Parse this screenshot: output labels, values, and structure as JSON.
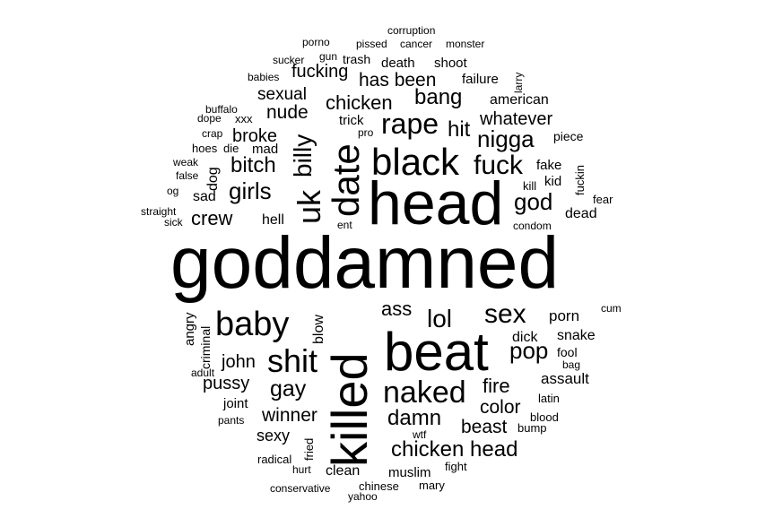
{
  "cloud": {
    "colors": {
      "background": "#ffffff",
      "text": "#000000"
    },
    "words": [
      {
        "text": "goddamned"
      },
      {
        "text": "head"
      },
      {
        "text": "beat"
      },
      {
        "text": "killed"
      },
      {
        "text": "black"
      },
      {
        "text": "date"
      },
      {
        "text": "baby"
      },
      {
        "text": "shit"
      },
      {
        "text": "naked"
      },
      {
        "text": "uk"
      },
      {
        "text": "rape"
      },
      {
        "text": "fuck"
      },
      {
        "text": "nigga"
      },
      {
        "text": "billy"
      },
      {
        "text": "sex"
      },
      {
        "text": "lol"
      },
      {
        "text": "chicken"
      },
      {
        "text": "chicken head"
      },
      {
        "text": "bang"
      },
      {
        "text": "has been"
      },
      {
        "text": "girls"
      },
      {
        "text": "gay"
      },
      {
        "text": "damn"
      },
      {
        "text": "pop"
      },
      {
        "text": "god"
      },
      {
        "text": "hit"
      },
      {
        "text": "bitch"
      },
      {
        "text": "crew"
      },
      {
        "text": "nude"
      },
      {
        "text": "fire"
      },
      {
        "text": "color"
      },
      {
        "text": "beast"
      },
      {
        "text": "ass"
      },
      {
        "text": "winner"
      },
      {
        "text": "pussy"
      },
      {
        "text": "john"
      },
      {
        "text": "whatever"
      },
      {
        "text": "fucking"
      },
      {
        "text": "sexual"
      },
      {
        "text": "broke"
      },
      {
        "text": "porn"
      },
      {
        "text": "snake"
      },
      {
        "text": "dick"
      },
      {
        "text": "assault"
      },
      {
        "text": "sexy"
      },
      {
        "text": "american"
      },
      {
        "text": "blow"
      },
      {
        "text": "angry"
      },
      {
        "text": "dog"
      },
      {
        "text": "sad"
      },
      {
        "text": "hell"
      },
      {
        "text": "mad"
      },
      {
        "text": "death"
      },
      {
        "text": "shoot"
      },
      {
        "text": "failure"
      },
      {
        "text": "trick"
      },
      {
        "text": "clean"
      },
      {
        "text": "muslim"
      },
      {
        "text": "dead"
      },
      {
        "text": "kid"
      },
      {
        "text": "fake"
      },
      {
        "text": "joint"
      },
      {
        "text": "fool"
      },
      {
        "text": "trash"
      },
      {
        "text": "criminal"
      },
      {
        "text": "piece"
      },
      {
        "text": "fear"
      },
      {
        "text": "latin"
      },
      {
        "text": "blood"
      },
      {
        "text": "bump"
      },
      {
        "text": "fight"
      },
      {
        "text": "mary"
      },
      {
        "text": "chinese"
      },
      {
        "text": "conservative"
      },
      {
        "text": "yahoo"
      },
      {
        "text": "radical"
      },
      {
        "text": "hurt"
      },
      {
        "text": "fried"
      },
      {
        "text": "wtf"
      },
      {
        "text": "pants"
      },
      {
        "text": "adult"
      },
      {
        "text": "bag"
      },
      {
        "text": "cum"
      },
      {
        "text": "condom"
      },
      {
        "text": "fuckin"
      },
      {
        "text": "kill"
      },
      {
        "text": "ent"
      },
      {
        "text": "pro"
      },
      {
        "text": "xxx"
      },
      {
        "text": "die"
      },
      {
        "text": "hoes"
      },
      {
        "text": "crap"
      },
      {
        "text": "dope"
      },
      {
        "text": "buffalo"
      },
      {
        "text": "babies"
      },
      {
        "text": "weak"
      },
      {
        "text": "false"
      },
      {
        "text": "og"
      },
      {
        "text": "straight"
      },
      {
        "text": "sick"
      },
      {
        "text": "sucker"
      },
      {
        "text": "gun"
      },
      {
        "text": "porno"
      },
      {
        "text": "pissed"
      },
      {
        "text": "cancer"
      },
      {
        "text": "monster"
      },
      {
        "text": "corruption"
      },
      {
        "text": "larry"
      }
    ]
  }
}
